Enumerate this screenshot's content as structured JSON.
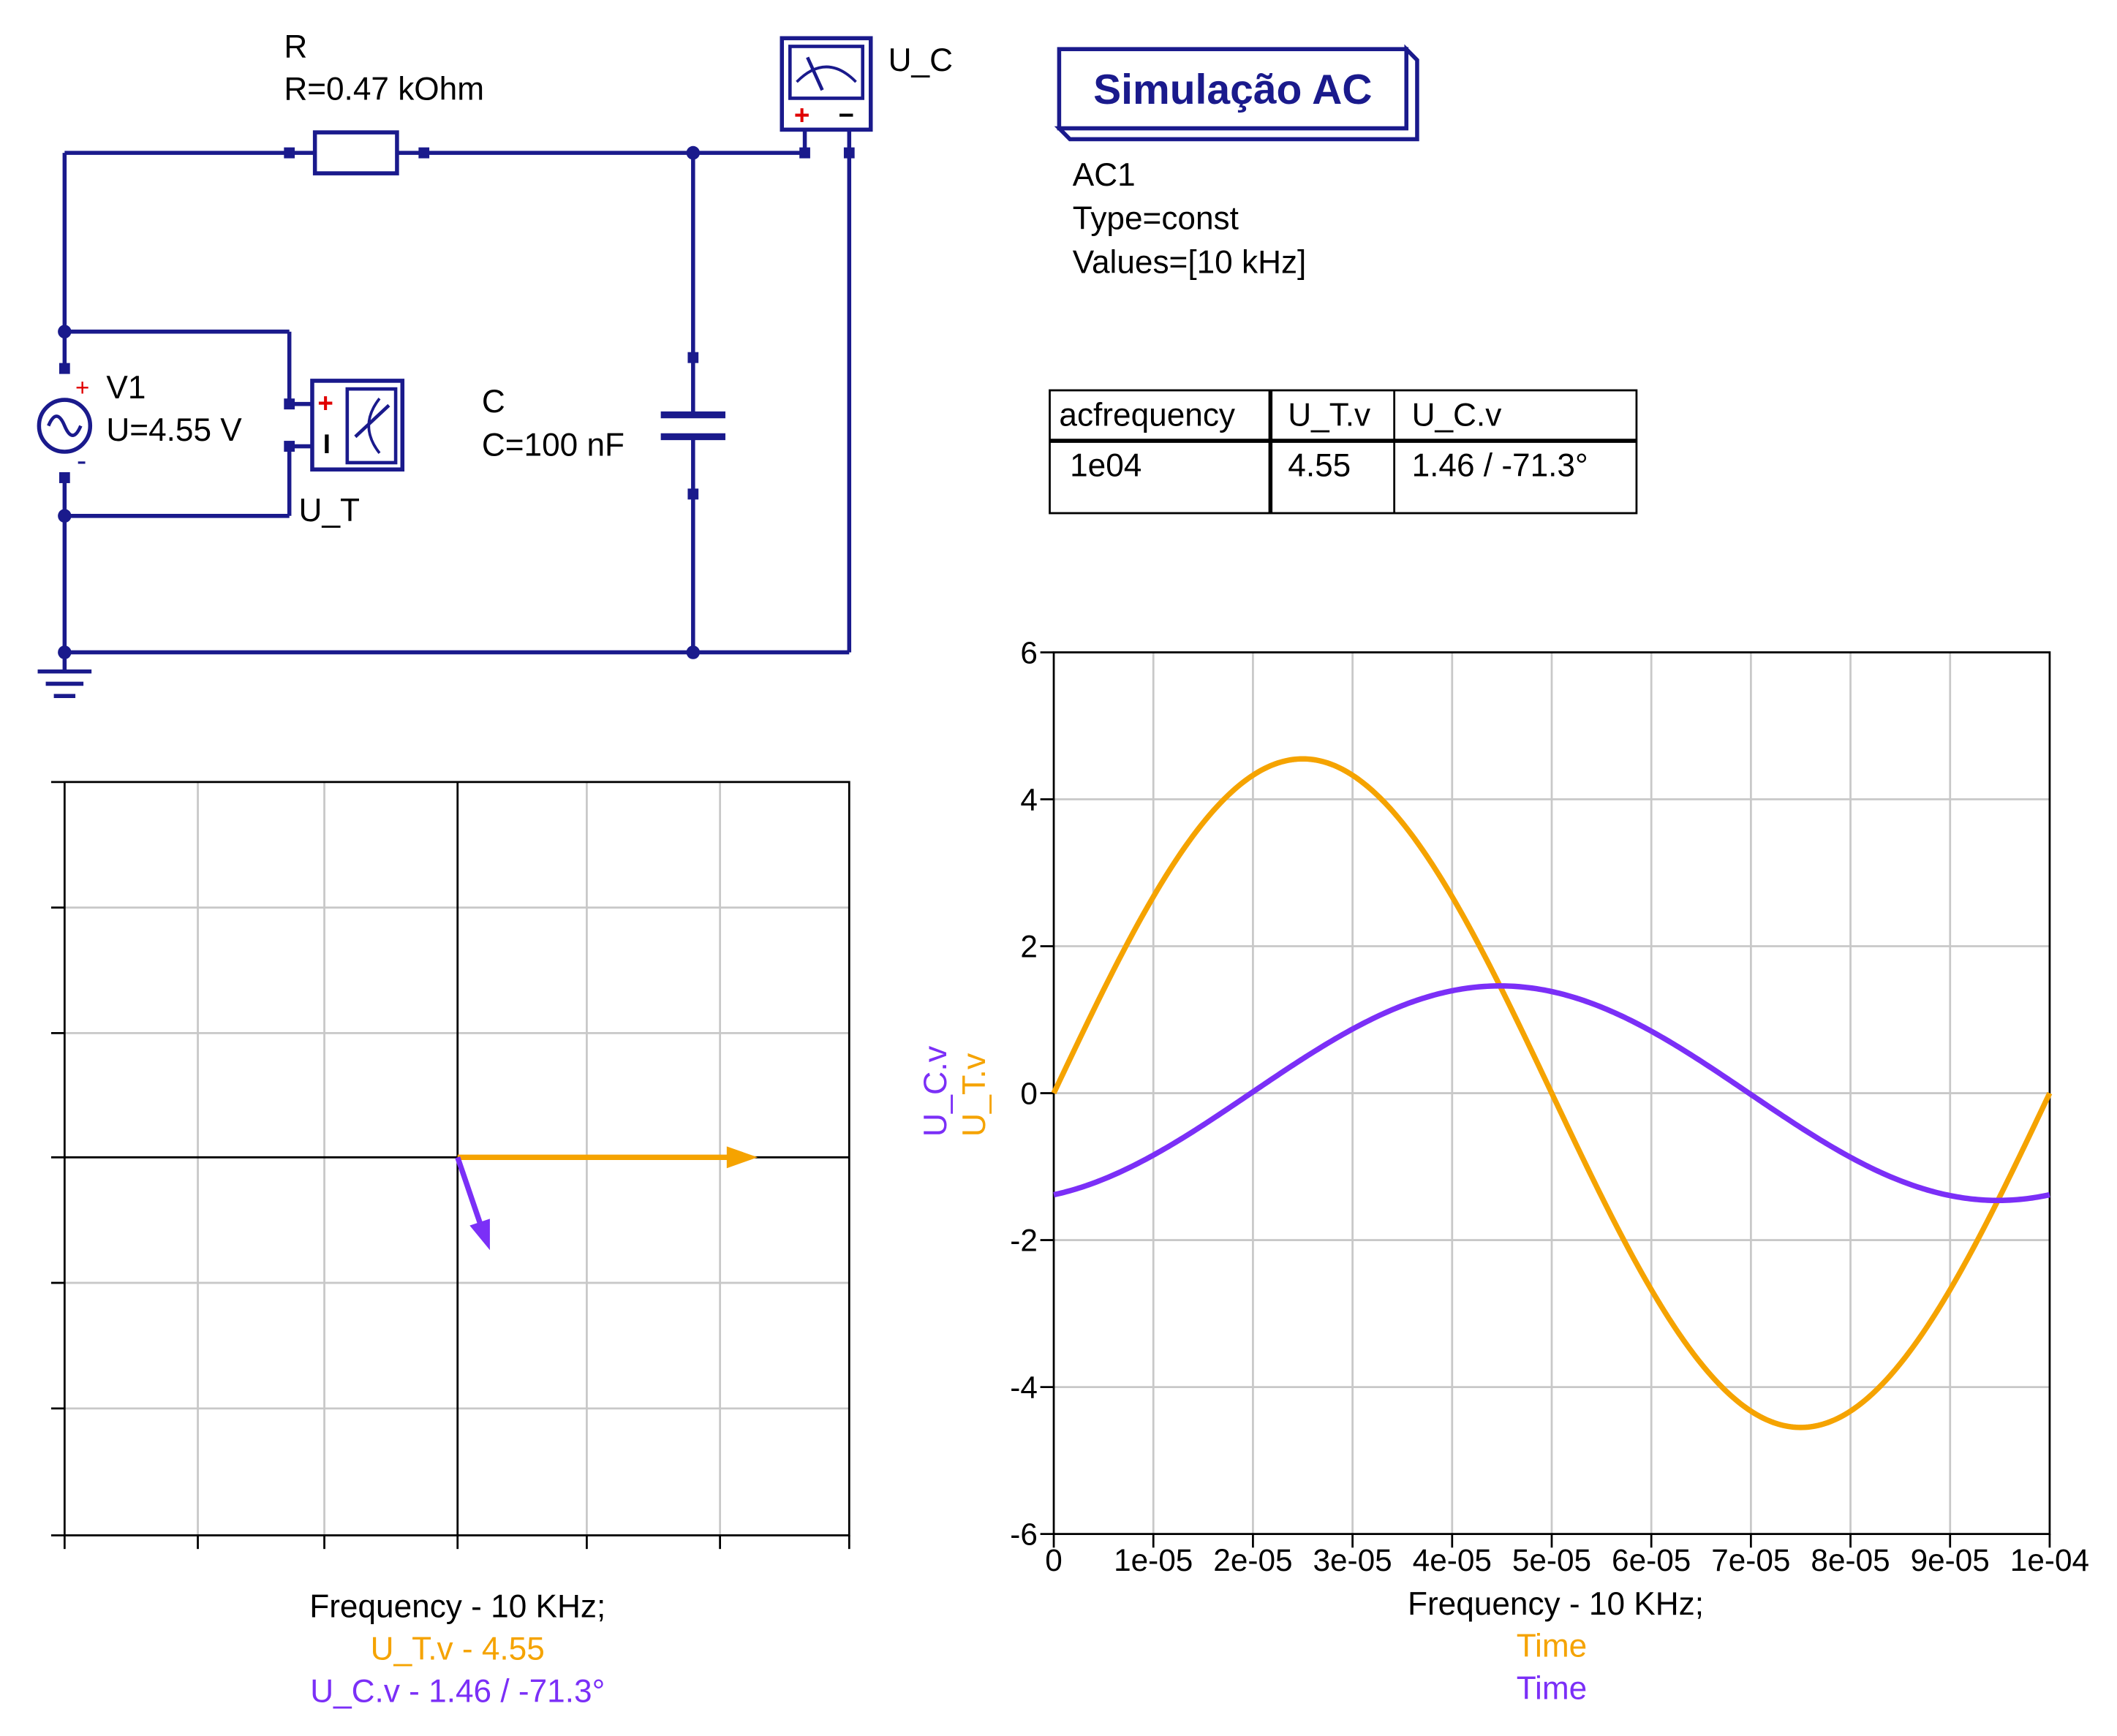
{
  "colors": {
    "wire": "#1a1a8c",
    "plus": "#e00000",
    "grid": "#c8c8c8",
    "ut": "#f5a300",
    "uc": "#7b2ff7",
    "text": "#000000",
    "box": "#ffffff"
  },
  "schematic": {
    "resistor": {
      "name": "R",
      "value": "R=0.47 kOhm"
    },
    "capacitor": {
      "name": "C",
      "value": "C=100 nF"
    },
    "source": {
      "name": "V1",
      "value": "U=4.55 V",
      "plus": "+",
      "minus": "-"
    },
    "probe_uc": {
      "name": "U_C",
      "plus": "+",
      "minus": "−"
    },
    "probe_ut": {
      "name": "U_T",
      "plus": "+",
      "minus": "I"
    },
    "ground_icon": "ground-icon"
  },
  "simulation": {
    "title": "Simulação AC",
    "name": "AC1",
    "type": "Type=const",
    "values": "Values=[10 kHz]"
  },
  "table": {
    "headers": [
      "acfrequency",
      "U_T.v",
      "U_C.v"
    ],
    "rows": [
      [
        "1e04",
        "4.55",
        "1.46 / -71.3°"
      ]
    ]
  },
  "phasor": {
    "caption": "Frequency - 10 KHz;",
    "ut_label": "U_T.v - 4.55",
    "uc_label": "U_C.v - 1.46 / -71.3°"
  },
  "chart_data": {
    "type": "line",
    "xlabel": "Frequency - 10 KHz;",
    "xlabel_series": [
      "Time",
      "Time"
    ],
    "ylabel_series": [
      "U_C.v",
      "U_T.v"
    ],
    "xlim": [
      0,
      0.0001
    ],
    "ylim": [
      -6,
      6
    ],
    "x_ticks": [
      "0",
      "1e-05",
      "2e-05",
      "3e-05",
      "4e-05",
      "5e-05",
      "6e-05",
      "7e-05",
      "8e-05",
      "9e-05",
      "1e-04"
    ],
    "y_ticks": [
      "6",
      "4",
      "2",
      "0",
      "-2",
      "-4",
      "-6"
    ],
    "grid": true,
    "series": [
      {
        "name": "U_T.v",
        "amplitude": 4.55,
        "phase_deg": 0,
        "frequency_hz": 10000,
        "color": "#f5a300"
      },
      {
        "name": "U_C.v",
        "amplitude": 1.46,
        "phase_deg": -71.3,
        "frequency_hz": 10000,
        "color": "#7b2ff7"
      }
    ]
  }
}
